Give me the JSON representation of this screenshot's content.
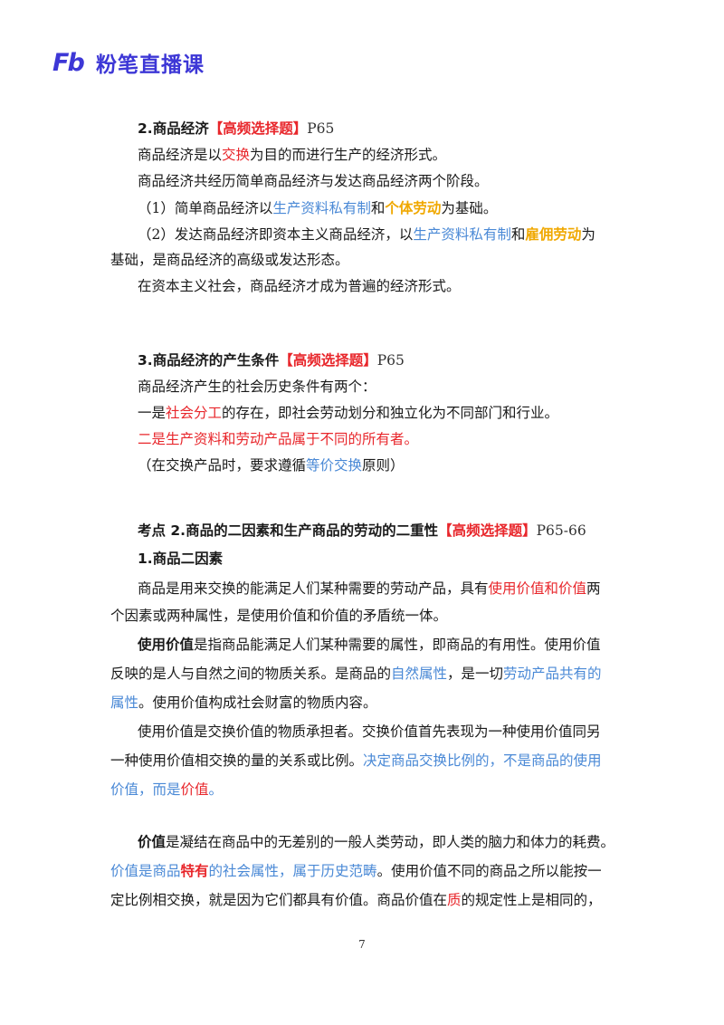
{
  "brand": {
    "logo": "Fb",
    "name": "粉笔直播课"
  },
  "s2": {
    "num": "2.",
    "title": "商品经济",
    "tag": "【高频选择题】",
    "page": "P65",
    "p1": [
      "商品经济是以",
      "交换",
      "为目的而进行生产的经济形式。"
    ],
    "p2": "商品经济共经历简单商品经济与发达商品经济两个阶段。",
    "p3": [
      "（1）简单商品经济以",
      "生产资料私有制",
      "和",
      "个体劳动",
      "为基础。"
    ],
    "p4a": [
      "（2）发达商品经济即资本主义商品经济，以",
      "生产资料私有制",
      "和",
      "雇佣劳动",
      "为"
    ],
    "p4b": "基础，是商品经济的高级或发达形态。",
    "p5": "在资本主义社会，商品经济才成为普遍的经济形式。"
  },
  "s3": {
    "num": "3.",
    "title": "商品经济的产生条件",
    "tag": "【高频选择题】",
    "page": "P65",
    "p1": "商品经济产生的社会历史条件有两个：",
    "p2": [
      "一是",
      "社会分工",
      "的存在，即社会劳动划分和独立化为不同部门和行业。"
    ],
    "p3": [
      "二是",
      "生产资料和劳动产品属于不同的所有者。"
    ],
    "p4": [
      "（在交换产品时，要求遵循",
      "等价交换",
      "原则）"
    ]
  },
  "kp2": {
    "title": "考点 2.商品的二因素和生产商品的劳动的二重性",
    "tag": "【高频选择题】",
    "page": "P65-66",
    "sub": "1.商品二因素",
    "p1a": [
      "商品是用来交换的能满足人们某种需要的劳动产品，具有",
      "使用价值和价值",
      "两"
    ],
    "p1b": "个因素或两种属性，是使用价值和价值的矛盾统一体。",
    "p2a": [
      "使用价值",
      "是指商品能满足人们某种需要的属性，即商品的有用性。使用价值"
    ],
    "p2b": [
      "反映的是人与自然之间的物质关系。是商品的",
      "自然属性",
      "，是一切",
      "劳动产品共有的"
    ],
    "p2c": [
      "属性",
      "。使用价值构成社会财富的物质内容。"
    ],
    "p3a": "使用价值是交换价值的物质承担者。交换价值首先表现为一种使用价值同另",
    "p3b": [
      "一种使用价值相交换的量的关系或比例。",
      "决定商品交换比例的，不是商品的使用"
    ],
    "p3c": [
      "价值，而是",
      "价值",
      "。"
    ],
    "p4a": [
      "价值",
      "是凝结在商品中的无差别的一般人类劳动，即人类的脑力和体力的耗费。"
    ],
    "p4b": [
      "价值是商品",
      "特有",
      "的",
      "社会属性，属于历史范畴",
      "。使用价值不同的商品之所以能按一"
    ],
    "p4c": [
      "定比例相交换，就是因为它们都具有价值。商品价值在",
      "质",
      "的规定性上是相同的，"
    ]
  },
  "page_number": "7",
  "colors": {
    "brand": "#3d37d6",
    "red": "#e8262b",
    "blue": "#4a89d6",
    "gold": "#f0a800"
  }
}
